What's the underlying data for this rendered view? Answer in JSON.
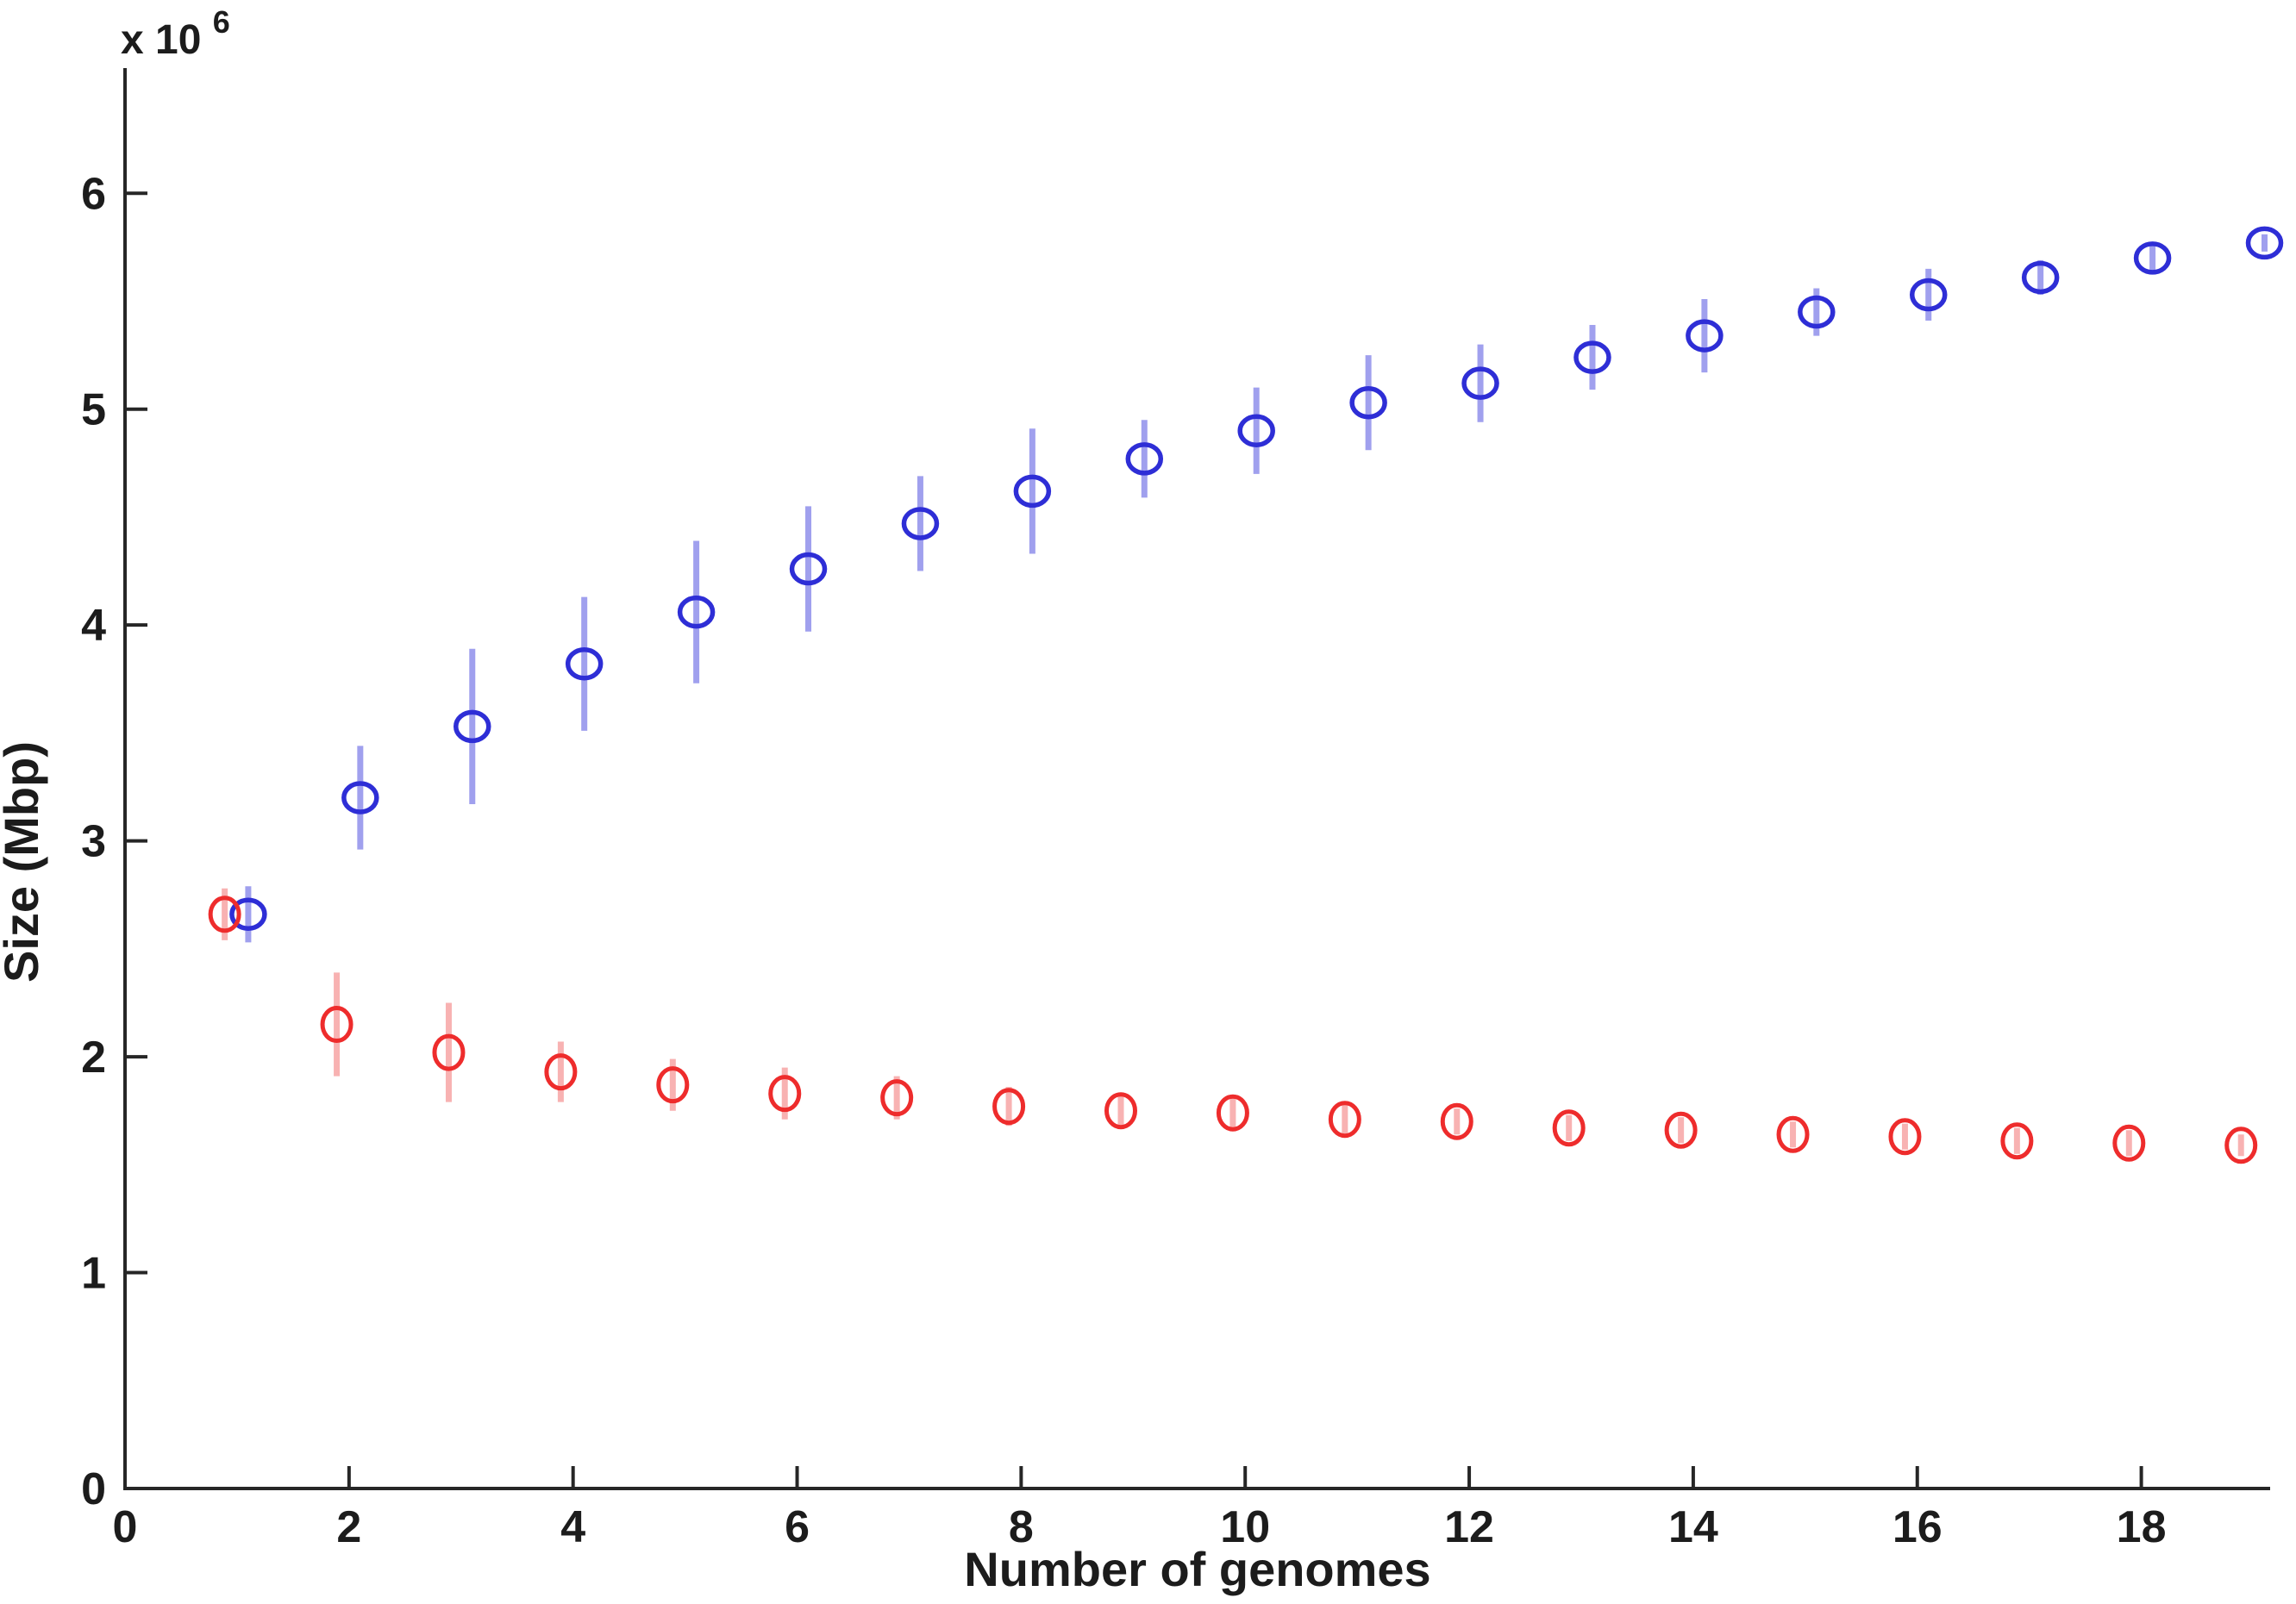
{
  "figure": {
    "background_color": "#ffffff",
    "axis_color": "#262626",
    "text_color": "#1c1c1c"
  },
  "chart_data": {
    "type": "scatter",
    "title": "",
    "xlabel": "Number of genomes",
    "ylabel": "Size (Mbp)",
    "y_multiplier_base": "x 10",
    "y_multiplier_exp": "6",
    "xlim": [
      0,
      19.15
    ],
    "ylim": [
      0,
      6.58
    ],
    "xticks": [
      0,
      2,
      4,
      6,
      8,
      10,
      12,
      14,
      16,
      18
    ],
    "yticks": [
      0,
      1,
      2,
      3,
      4,
      5,
      6
    ],
    "grid": false,
    "legend": "none",
    "x": [
      1,
      2,
      3,
      4,
      5,
      6,
      7,
      8,
      9,
      10,
      11,
      12,
      13,
      14,
      15,
      16,
      17,
      18,
      19
    ],
    "y_unit": "1e6 Mbp",
    "series": [
      {
        "name": "blue-upper-increasing",
        "marker_color": "#2e2ed6",
        "errorbar_color": "#a0a0ee",
        "x_offset": 0.1,
        "values": [
          2.66,
          3.2,
          3.53,
          3.82,
          4.06,
          4.26,
          4.47,
          4.62,
          4.77,
          4.9,
          5.03,
          5.12,
          5.24,
          5.34,
          5.45,
          5.53,
          5.61,
          5.7,
          5.77
        ],
        "errors": [
          0.13,
          0.24,
          0.36,
          0.31,
          0.33,
          0.29,
          0.22,
          0.29,
          0.18,
          0.2,
          0.22,
          0.18,
          0.15,
          0.17,
          0.11,
          0.12,
          0.08,
          0.06,
          0.04
        ]
      },
      {
        "name": "red-lower-decreasing",
        "marker_color": "#ee2c2c",
        "errorbar_color": "#f8b2b2",
        "x_offset": -0.11,
        "values": [
          2.66,
          2.15,
          2.02,
          1.93,
          1.87,
          1.83,
          1.81,
          1.77,
          1.75,
          1.74,
          1.71,
          1.7,
          1.67,
          1.66,
          1.64,
          1.63,
          1.61,
          1.6,
          1.59
        ],
        "errors": [
          0.12,
          0.24,
          0.23,
          0.14,
          0.12,
          0.12,
          0.1,
          0.09,
          0.08,
          0.08,
          0.07,
          0.06,
          0.06,
          0.06,
          0.06,
          0.06,
          0.06,
          0.06,
          0.05
        ]
      }
    ]
  }
}
